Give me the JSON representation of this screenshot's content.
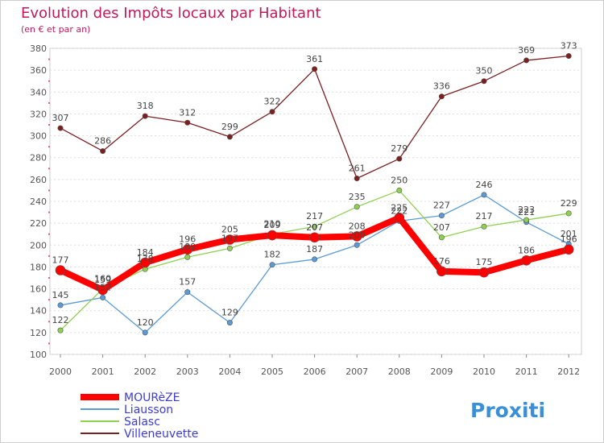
{
  "chart_data": {
    "type": "line",
    "title": "Evolution des Impôts locaux par Habitant",
    "subtitle": "(en € et par an)",
    "xlabel": "",
    "ylabel": "",
    "categories": [
      "2000",
      "2001",
      "2002",
      "2003",
      "2004",
      "2005",
      "2006",
      "2007",
      "2008",
      "2009",
      "2010",
      "2011",
      "2012"
    ],
    "ylim": [
      100,
      380
    ],
    "yticks": [
      100,
      120,
      140,
      160,
      180,
      200,
      220,
      240,
      260,
      280,
      300,
      320,
      340,
      360,
      380
    ],
    "grid": true,
    "legend_position": "bottom-left",
    "series": [
      {
        "name": "MOURèZE",
        "values": [
          177,
          159,
          184,
          196,
          205,
          209,
          207,
          208,
          225,
          176,
          175,
          186,
          196
        ],
        "color": "#ff0000"
      },
      {
        "name": "Liausson",
        "values": [
          145,
          152,
          120,
          157,
          129,
          182,
          187,
          200,
          222,
          227,
          246,
          221,
          201
        ],
        "color": "#5b9bd5"
      },
      {
        "name": "Salasc",
        "values": [
          122,
          160,
          178,
          189,
          197,
          210,
          217,
          235,
          250,
          207,
          217,
          223,
          229
        ],
        "color": "#8fd14f"
      },
      {
        "name": "Villeneuvette",
        "values": [
          307,
          286,
          318,
          312,
          299,
          322,
          361,
          261,
          279,
          336,
          350,
          369,
          373
        ],
        "color": "#7b1f1f"
      }
    ]
  },
  "logo": {
    "text": "Proxiti"
  }
}
